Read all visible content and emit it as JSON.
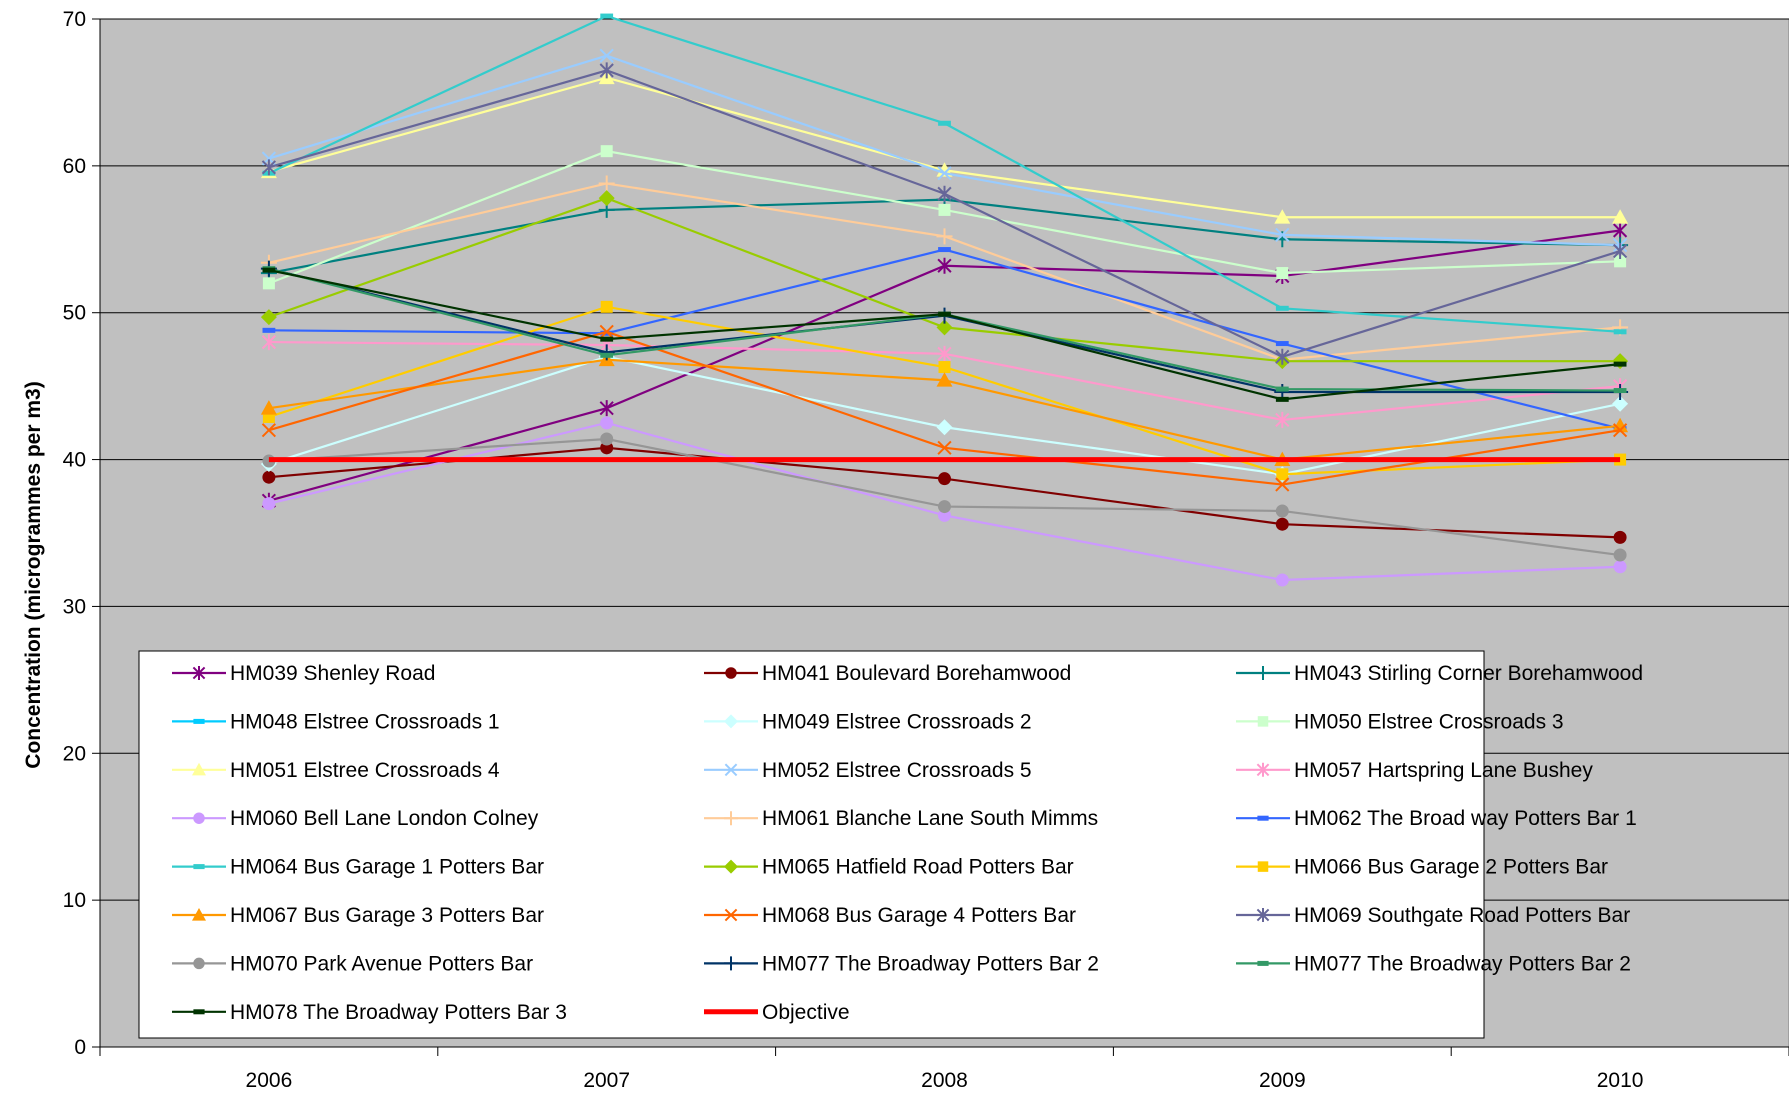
{
  "chart_data": {
    "type": "line",
    "ylabel": "Concentration (microgrammes per m3)",
    "xlabel": "",
    "ylim": [
      0,
      70
    ],
    "yticks": [
      0,
      10,
      20,
      30,
      40,
      50,
      60,
      70
    ],
    "categories": [
      "2006",
      "2007",
      "2008",
      "2009",
      "2010"
    ],
    "plot_background": "#c0c0c0",
    "grid": "horizontal",
    "legend_position": "inside-bottom",
    "series": [
      {
        "name": "HM039 Shenley Road",
        "color": "#800080",
        "marker": "asterisk",
        "values": [
          37.2,
          43.5,
          53.2,
          52.5,
          55.6
        ]
      },
      {
        "name": "HM041 Boulevard Borehamwood",
        "color": "#800000",
        "marker": "circle",
        "values": [
          38.8,
          40.8,
          38.7,
          35.6,
          34.7
        ]
      },
      {
        "name": "HM043 Stirling Corner Borehamwood",
        "color": "#008080",
        "marker": "plus",
        "values": [
          52.7,
          57.0,
          57.7,
          55.0,
          54.6
        ]
      },
      {
        "name": "HM048 Elstree Crossroads 1",
        "color": "#00ccff",
        "marker": "dash",
        "values": [
          null,
          null,
          null,
          null,
          null
        ]
      },
      {
        "name": "HM049 Elstree Crossroads 2",
        "color": "#ccffff",
        "marker": "diamond",
        "values": [
          39.7,
          47.0,
          42.2,
          39.0,
          43.8
        ]
      },
      {
        "name": "HM050 Elstree Crossroads 3",
        "color": "#ccffcc",
        "marker": "square",
        "values": [
          52.0,
          61.0,
          57.0,
          52.7,
          53.5
        ]
      },
      {
        "name": "HM051 Elstree Crossroads 4",
        "color": "#ffff99",
        "marker": "triangle",
        "values": [
          59.6,
          66.0,
          59.7,
          56.5,
          56.5
        ]
      },
      {
        "name": "HM052 Elstree Crossroads 5",
        "color": "#99ccff",
        "marker": "x",
        "values": [
          60.5,
          67.5,
          59.5,
          55.3,
          54.6
        ]
      },
      {
        "name": "HM057 Hartspring Lane Bushey",
        "color": "#ff99cc",
        "marker": "asterisk",
        "values": [
          48.0,
          47.8,
          47.2,
          42.7,
          45.0
        ]
      },
      {
        "name": "HM060 Bell Lane London Colney",
        "color": "#cc99ff",
        "marker": "circle",
        "values": [
          37.0,
          42.5,
          36.2,
          31.8,
          32.7
        ]
      },
      {
        "name": "HM061 Blanche Lane South Mimms",
        "color": "#ffcc99",
        "marker": "plus",
        "values": [
          53.4,
          58.8,
          55.2,
          46.8,
          49.0
        ]
      },
      {
        "name": "HM062 The Broad way Potters Bar 1",
        "color": "#3366ff",
        "marker": "dash",
        "values": [
          48.8,
          48.6,
          54.3,
          47.9,
          42.1
        ]
      },
      {
        "name": "HM064 Bus Garage 1 Potters Bar",
        "color": "#33cccc",
        "marker": "dash",
        "values": [
          59.5,
          70.2,
          62.9,
          50.3,
          48.7
        ]
      },
      {
        "name": "HM065 Hatfield Road Potters Bar",
        "color": "#99cc00",
        "marker": "diamond",
        "values": [
          49.7,
          57.8,
          49.0,
          46.7,
          46.7
        ]
      },
      {
        "name": "HM066 Bus Garage 2 Potters Bar",
        "color": "#ffcc00",
        "marker": "square",
        "values": [
          42.9,
          50.4,
          46.3,
          39.0,
          40.0
        ]
      },
      {
        "name": "HM067 Bus Garage 3 Potters Bar",
        "color": "#ff9900",
        "marker": "triangle",
        "values": [
          43.5,
          46.8,
          45.4,
          40.0,
          42.3
        ]
      },
      {
        "name": "HM068 Bus Garage 4 Potters Bar",
        "color": "#ff6600",
        "marker": "x",
        "values": [
          42.0,
          48.7,
          40.8,
          38.3,
          42.0
        ]
      },
      {
        "name": "HM069 Southgate Road Potters Bar",
        "color": "#666699",
        "marker": "asterisk",
        "values": [
          59.9,
          66.5,
          58.1,
          47.0,
          54.2
        ]
      },
      {
        "name": "HM070 Park Avenue Potters Bar",
        "color": "#969696",
        "marker": "circle",
        "values": [
          39.9,
          41.4,
          36.8,
          36.5,
          33.5
        ]
      },
      {
        "name": "HM077 The Broadway Potters Bar 2",
        "color": "#003366",
        "marker": "plus",
        "values": [
          53.0,
          47.3,
          49.8,
          44.6,
          44.6
        ]
      },
      {
        "name": "HM077 The Broadway Potters Bar 2",
        "color": "#339966",
        "marker": "dash",
        "values": [
          53.0,
          47.1,
          49.9,
          44.8,
          44.7
        ]
      },
      {
        "name": "HM078 The Broadway Potters Bar 3",
        "color": "#003300",
        "marker": "dash",
        "values": [
          52.9,
          48.2,
          49.9,
          44.1,
          46.5
        ]
      },
      {
        "name": "Objective",
        "color": "#ff0000",
        "marker": "none",
        "values": [
          40,
          40,
          40,
          40,
          40
        ]
      }
    ]
  }
}
